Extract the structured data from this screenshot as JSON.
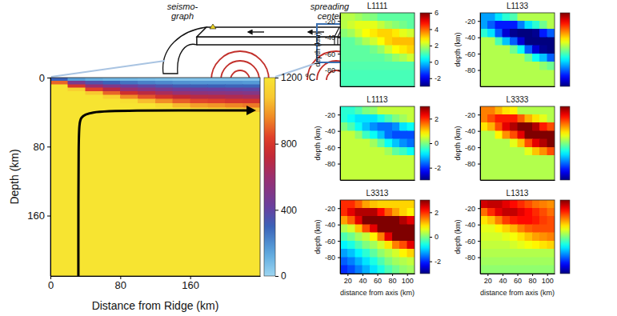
{
  "schematic": {
    "labels": [
      [
        "seismo-",
        "graph"
      ],
      [
        "spreading",
        "center"
      ]
    ]
  },
  "chart_data": [
    {
      "type": "heatmap",
      "xlabel": "Distance from Ridge (km)",
      "ylabel": "Depth (km)",
      "xlim": [
        0,
        240
      ],
      "ylim": [
        0,
        230
      ],
      "xticks": [
        0,
        80,
        160
      ],
      "yticks": [
        0,
        80,
        160
      ],
      "x_edges": [
        0,
        20,
        40,
        60,
        80,
        100,
        120,
        140,
        160,
        180,
        200,
        220,
        240
      ],
      "y_edges": [
        0,
        4,
        8,
        12,
        16,
        20,
        25,
        30,
        35,
        40,
        50,
        230
      ],
      "cells": [
        [
          300,
          160,
          120,
          100,
          90,
          80,
          70,
          60,
          60,
          60,
          60,
          60
        ],
        [
          900,
          480,
          360,
          300,
          260,
          230,
          210,
          190,
          180,
          180,
          180,
          170
        ],
        [
          1200,
          800,
          600,
          500,
          430,
          390,
          350,
          320,
          310,
          300,
          290,
          290
        ],
        [
          1200,
          1120,
          840,
          700,
          600,
          540,
          490,
          450,
          430,
          420,
          410,
          400
        ],
        [
          1200,
          1200,
          1080,
          900,
          770,
          700,
          640,
          580,
          550,
          540,
          530,
          510
        ],
        [
          1200,
          1200,
          1200,
          1120,
          960,
          870,
          790,
          730,
          690,
          680,
          660,
          640
        ],
        [
          1200,
          1200,
          1200,
          1200,
          1180,
          1060,
          970,
          890,
          850,
          830,
          800,
          790
        ],
        [
          1200,
          1200,
          1200,
          1200,
          1200,
          1200,
          1150,
          1050,
          1000,
          980,
          950,
          930
        ],
        [
          1200,
          1200,
          1200,
          1200,
          1200,
          1200,
          1200,
          1200,
          1150,
          1120,
          1100,
          1070
        ],
        [
          1200,
          1200,
          1200,
          1200,
          1200,
          1200,
          1200,
          1200,
          1200,
          1200,
          1200,
          1200
        ],
        [
          1200,
          1200,
          1200,
          1200,
          1200,
          1200,
          1200,
          1200,
          1200,
          1200,
          1200,
          1200
        ]
      ],
      "colorbar": {
        "range": [
          0,
          1200
        ],
        "ticks": [
          0,
          400,
          800,
          {
            "value": 1200,
            "label": "1200 °C"
          }
        ]
      },
      "trajectory": {
        "x": [
          32,
          32,
          34,
          45,
          80,
          230
        ],
        "y": [
          230,
          60,
          45,
          40,
          38,
          38
        ]
      }
    },
    {
      "type": "heatmap",
      "title": "L1111",
      "ylabel": "depth (km)",
      "xlim": [
        10,
        110
      ],
      "ylim": [
        -100,
        -10
      ],
      "yticks": [
        -20,
        -40,
        -60,
        -80
      ],
      "x_edges": [
        10,
        20,
        30,
        40,
        50,
        60,
        70,
        80,
        90,
        100,
        110
      ],
      "y_edges": [
        -10,
        -20,
        -30,
        -40,
        -50,
        -60,
        -70,
        -80,
        -90,
        -100
      ],
      "cells": [
        [
          2.0,
          2.0,
          1.8,
          1.6,
          1.5,
          1.2,
          1.2,
          1.2,
          1.2,
          1.2
        ],
        [
          2.0,
          2.2,
          2.4,
          2.4,
          2.4,
          2.1,
          1.8,
          1.6,
          1.4,
          1.2
        ],
        [
          1.6,
          1.8,
          2.2,
          2.6,
          2.8,
          3.0,
          3.0,
          2.8,
          2.4,
          2.2
        ],
        [
          1.2,
          1.2,
          1.5,
          1.9,
          2.2,
          2.6,
          3.0,
          3.2,
          3.2,
          3.2
        ],
        [
          1.2,
          1.2,
          1.2,
          1.2,
          1.4,
          1.7,
          2.2,
          2.6,
          2.8,
          3.0
        ],
        [
          1.2,
          1.2,
          1.2,
          1.2,
          1.2,
          1.2,
          1.4,
          1.7,
          1.9,
          2.2
        ],
        [
          1.1,
          1.1,
          1.1,
          1.1,
          1.1,
          1.1,
          1.1,
          1.1,
          1.1,
          1.1
        ],
        [
          1.0,
          1.0,
          1.0,
          1.0,
          1.0,
          1.0,
          1.0,
          1.0,
          1.0,
          1.0
        ],
        [
          1.0,
          1.0,
          1.0,
          1.0,
          1.0,
          1.0,
          1.0,
          1.0,
          1.0,
          1.0
        ]
      ],
      "colorbar": {
        "range": [
          -3,
          6
        ],
        "ticks": [
          -2,
          0,
          2,
          4,
          6
        ]
      }
    },
    {
      "type": "heatmap",
      "title": "L1133",
      "ylabel": "depth (km)",
      "xlim": [
        10,
        110
      ],
      "ylim": [
        -100,
        -10
      ],
      "yticks": [
        -20,
        -40,
        -60,
        -80
      ],
      "x_edges": [
        10,
        20,
        30,
        40,
        50,
        60,
        70,
        80,
        90,
        100,
        110
      ],
      "y_edges": [
        -10,
        -20,
        -30,
        -40,
        -50,
        -60,
        -70,
        -80,
        -90,
        -100
      ],
      "cells": [
        [
          -1.3,
          -1.3,
          -0.9,
          -0.5,
          -0.3,
          0.3,
          0.3,
          0.3,
          0.3,
          0.3
        ],
        [
          -1.3,
          -1.7,
          -2.1,
          -2.1,
          -2.1,
          -1.5,
          -0.9,
          -0.5,
          -0.1,
          0.3
        ],
        [
          -0.5,
          -0.9,
          -1.7,
          -2.5,
          -2.9,
          -3.0,
          -3.0,
          -2.9,
          -2.1,
          -1.7
        ],
        [
          0.3,
          0.3,
          -0.3,
          -1.1,
          -1.7,
          -2.5,
          -3.0,
          -3.0,
          -3.0,
          -3.0
        ],
        [
          0.3,
          0.3,
          0.3,
          0.3,
          -0.1,
          -0.7,
          -1.7,
          -2.5,
          -2.9,
          -3.0
        ],
        [
          0.3,
          0.3,
          0.3,
          0.3,
          0.3,
          0.3,
          -0.1,
          -0.7,
          -1.1,
          -1.7
        ],
        [
          0.3,
          0.3,
          0.3,
          0.3,
          0.3,
          0.3,
          0.3,
          0.3,
          0.1,
          -0.1
        ],
        [
          0.3,
          0.3,
          0.3,
          0.3,
          0.3,
          0.3,
          0.3,
          0.3,
          0.3,
          0.3
        ],
        [
          0.3,
          0.3,
          0.3,
          0.3,
          0.3,
          0.3,
          0.3,
          0.3,
          0.3,
          0.3
        ]
      ],
      "colorbar": {
        "range": [
          -3,
          3
        ]
      }
    },
    {
      "type": "heatmap",
      "title": "L1113",
      "ylabel": "depth (km)",
      "xlim": [
        10,
        110
      ],
      "ylim": [
        -100,
        -10
      ],
      "yticks": [
        -20,
        -40,
        -60,
        -80
      ],
      "x_edges": [
        10,
        20,
        30,
        40,
        50,
        60,
        70,
        80,
        90,
        100,
        110
      ],
      "y_edges": [
        -10,
        -20,
        -30,
        -40,
        -50,
        -60,
        -70,
        -80,
        -90,
        -100
      ],
      "cells": [
        [
          -0.5,
          -0.5,
          -0.3,
          0.0,
          0.1,
          0.4,
          0.4,
          0.4,
          0.4,
          0.4
        ],
        [
          -0.5,
          -0.7,
          -0.9,
          -0.9,
          -0.9,
          -0.6,
          -0.3,
          0.0,
          0.2,
          0.4
        ],
        [
          0.0,
          -0.3,
          -0.7,
          -1.1,
          -1.4,
          -1.6,
          -1.6,
          -1.4,
          -0.9,
          -0.7
        ],
        [
          0.4,
          0.4,
          0.1,
          -0.4,
          -0.7,
          -1.1,
          -1.6,
          -1.8,
          -1.8,
          -1.8
        ],
        [
          0.4,
          0.4,
          0.4,
          0.4,
          0.2,
          -0.2,
          -0.7,
          -1.1,
          -1.4,
          -1.6
        ],
        [
          0.4,
          0.4,
          0.4,
          0.4,
          0.4,
          0.4,
          0.2,
          -0.2,
          -0.4,
          -0.7
        ],
        [
          0.4,
          0.4,
          0.4,
          0.4,
          0.4,
          0.4,
          0.4,
          0.4,
          0.4,
          0.4
        ],
        [
          0.4,
          0.4,
          0.4,
          0.4,
          0.4,
          0.4,
          0.4,
          0.4,
          0.4,
          0.4
        ],
        [
          0.4,
          0.4,
          0.4,
          0.4,
          0.4,
          0.4,
          0.4,
          0.4,
          0.4,
          0.4
        ]
      ],
      "colorbar": {
        "range": [
          -3,
          3
        ],
        "ticks": [
          -2,
          0,
          2
        ]
      }
    },
    {
      "type": "heatmap",
      "title": "L3333",
      "ylabel": "depth (km)",
      "xlim": [
        10,
        110
      ],
      "ylim": [
        -100,
        -10
      ],
      "yticks": [
        -20,
        -40,
        -60,
        -80
      ],
      "x_edges": [
        10,
        20,
        30,
        40,
        50,
        60,
        70,
        80,
        90,
        100,
        110
      ],
      "y_edges": [
        -10,
        -20,
        -30,
        -40,
        -50,
        -60,
        -70,
        -80,
        -90,
        -100
      ],
      "cells": [
        [
          1.5,
          1.5,
          1.2,
          0.9,
          0.8,
          0.3,
          0.3,
          0.3,
          0.3,
          0.3
        ],
        [
          1.5,
          1.8,
          2.1,
          2.1,
          2.1,
          1.7,
          1.2,
          0.9,
          0.6,
          0.3
        ],
        [
          0.9,
          1.2,
          1.8,
          2.4,
          2.7,
          3.0,
          3.0,
          2.7,
          2.1,
          1.8
        ],
        [
          0.3,
          0.3,
          0.8,
          1.4,
          1.8,
          2.4,
          3.0,
          3.0,
          3.0,
          3.0
        ],
        [
          0.3,
          0.3,
          0.3,
          0.3,
          0.6,
          1.1,
          1.8,
          2.4,
          2.7,
          3.0
        ],
        [
          0.3,
          0.3,
          0.3,
          0.3,
          0.3,
          0.3,
          0.6,
          1.1,
          1.4,
          1.8
        ],
        [
          0.3,
          0.3,
          0.3,
          0.3,
          0.3,
          0.3,
          0.3,
          0.3,
          0.3,
          0.3
        ],
        [
          0.3,
          0.3,
          0.3,
          0.3,
          0.3,
          0.3,
          0.3,
          0.3,
          0.3,
          0.3
        ],
        [
          0.3,
          0.3,
          0.3,
          0.3,
          0.3,
          0.3,
          0.3,
          0.3,
          0.3,
          0.3
        ]
      ],
      "colorbar": {
        "range": [
          -3,
          3
        ]
      }
    },
    {
      "type": "heatmap",
      "title": "L3313",
      "xlabel": "distance from axis (km)",
      "ylabel": "depth (km)",
      "xlim": [
        10,
        110
      ],
      "ylim": [
        -100,
        -10
      ],
      "xticks": [
        20,
        40,
        60,
        80,
        100
      ],
      "yticks": [
        -20,
        -40,
        -60,
        -80
      ],
      "x_edges": [
        10,
        20,
        30,
        40,
        50,
        60,
        70,
        80,
        90,
        100,
        110
      ],
      "y_edges": [
        -10,
        -20,
        -30,
        -40,
        -50,
        -60,
        -70,
        -80,
        -90,
        -100
      ],
      "cells": [
        [
          2.0,
          2.0,
          1.7,
          1.3,
          1.1,
          1.0,
          1.0,
          1.0,
          1.0,
          1.0
        ],
        [
          2.0,
          2.4,
          2.7,
          2.7,
          2.7,
          2.2,
          1.7,
          1.3,
          1.0,
          0.8
        ],
        [
          1.3,
          1.7,
          2.4,
          3.0,
          3.0,
          3.0,
          3.0,
          3.0,
          2.7,
          2.4
        ],
        [
          0.3,
          0.5,
          1.1,
          1.8,
          2.4,
          3.0,
          3.0,
          3.0,
          3.0,
          3.0
        ],
        [
          -0.3,
          -0.1,
          0.2,
          0.4,
          0.8,
          1.5,
          2.4,
          3.0,
          3.0,
          3.0
        ],
        [
          -0.8,
          -0.6,
          -0.3,
          0.0,
          0.2,
          0.5,
          0.9,
          1.5,
          1.8,
          2.4
        ],
        [
          -1.3,
          -1.1,
          -0.8,
          -0.5,
          -0.2,
          0.1,
          0.3,
          0.5,
          0.8,
          1.0
        ],
        [
          -1.7,
          -1.5,
          -1.2,
          -0.9,
          -0.6,
          -0.3,
          0.0,
          0.2,
          0.3,
          0.4
        ],
        [
          -2.0,
          -1.8,
          -1.5,
          -1.2,
          -0.9,
          -0.6,
          -0.3,
          -0.1,
          0.1,
          0.2
        ]
      ],
      "colorbar": {
        "range": [
          -3,
          3
        ],
        "ticks": [
          -2,
          0,
          2
        ]
      }
    },
    {
      "type": "heatmap",
      "title": "L1313",
      "xlabel": "distance from axis (km)",
      "ylabel": "depth (km)",
      "xlim": [
        10,
        110
      ],
      "ylim": [
        -100,
        -10
      ],
      "xticks": [
        20,
        40,
        60,
        80,
        100
      ],
      "yticks": [
        -20,
        -40,
        -60,
        -80
      ],
      "x_edges": [
        10,
        20,
        30,
        40,
        50,
        60,
        70,
        80,
        90,
        100,
        110
      ],
      "y_edges": [
        -10,
        -20,
        -30,
        -40,
        -50,
        -60,
        -70,
        -80,
        -90,
        -100
      ],
      "cells": [
        [
          2.5,
          2.6,
          2.6,
          2.4,
          2.2,
          2.0,
          1.8,
          1.6,
          1.5,
          1.4
        ],
        [
          1.6,
          2.0,
          2.4,
          2.6,
          2.6,
          2.4,
          2.2,
          2.0,
          1.8,
          1.6
        ],
        [
          0.9,
          1.1,
          1.5,
          1.9,
          2.1,
          2.2,
          2.2,
          2.1,
          1.9,
          1.8
        ],
        [
          0.6,
          0.6,
          0.8,
          1.0,
          1.2,
          1.5,
          1.7,
          1.8,
          1.8,
          1.8
        ],
        [
          0.5,
          0.5,
          0.5,
          0.6,
          0.7,
          0.9,
          1.1,
          1.3,
          1.4,
          1.5
        ],
        [
          0.4,
          0.4,
          0.4,
          0.4,
          0.5,
          0.6,
          0.7,
          0.8,
          0.9,
          1.0
        ],
        [
          0.3,
          0.3,
          0.3,
          0.3,
          0.3,
          0.3,
          0.3,
          0.3,
          0.3,
          0.3
        ],
        [
          0.2,
          0.2,
          0.2,
          0.2,
          0.2,
          0.2,
          0.2,
          0.2,
          0.2,
          0.2
        ],
        [
          0.1,
          0.1,
          0.1,
          0.1,
          0.1,
          0.1,
          0.1,
          0.1,
          0.1,
          0.1
        ]
      ],
      "colorbar": {
        "range": [
          -3,
          3
        ]
      }
    }
  ]
}
